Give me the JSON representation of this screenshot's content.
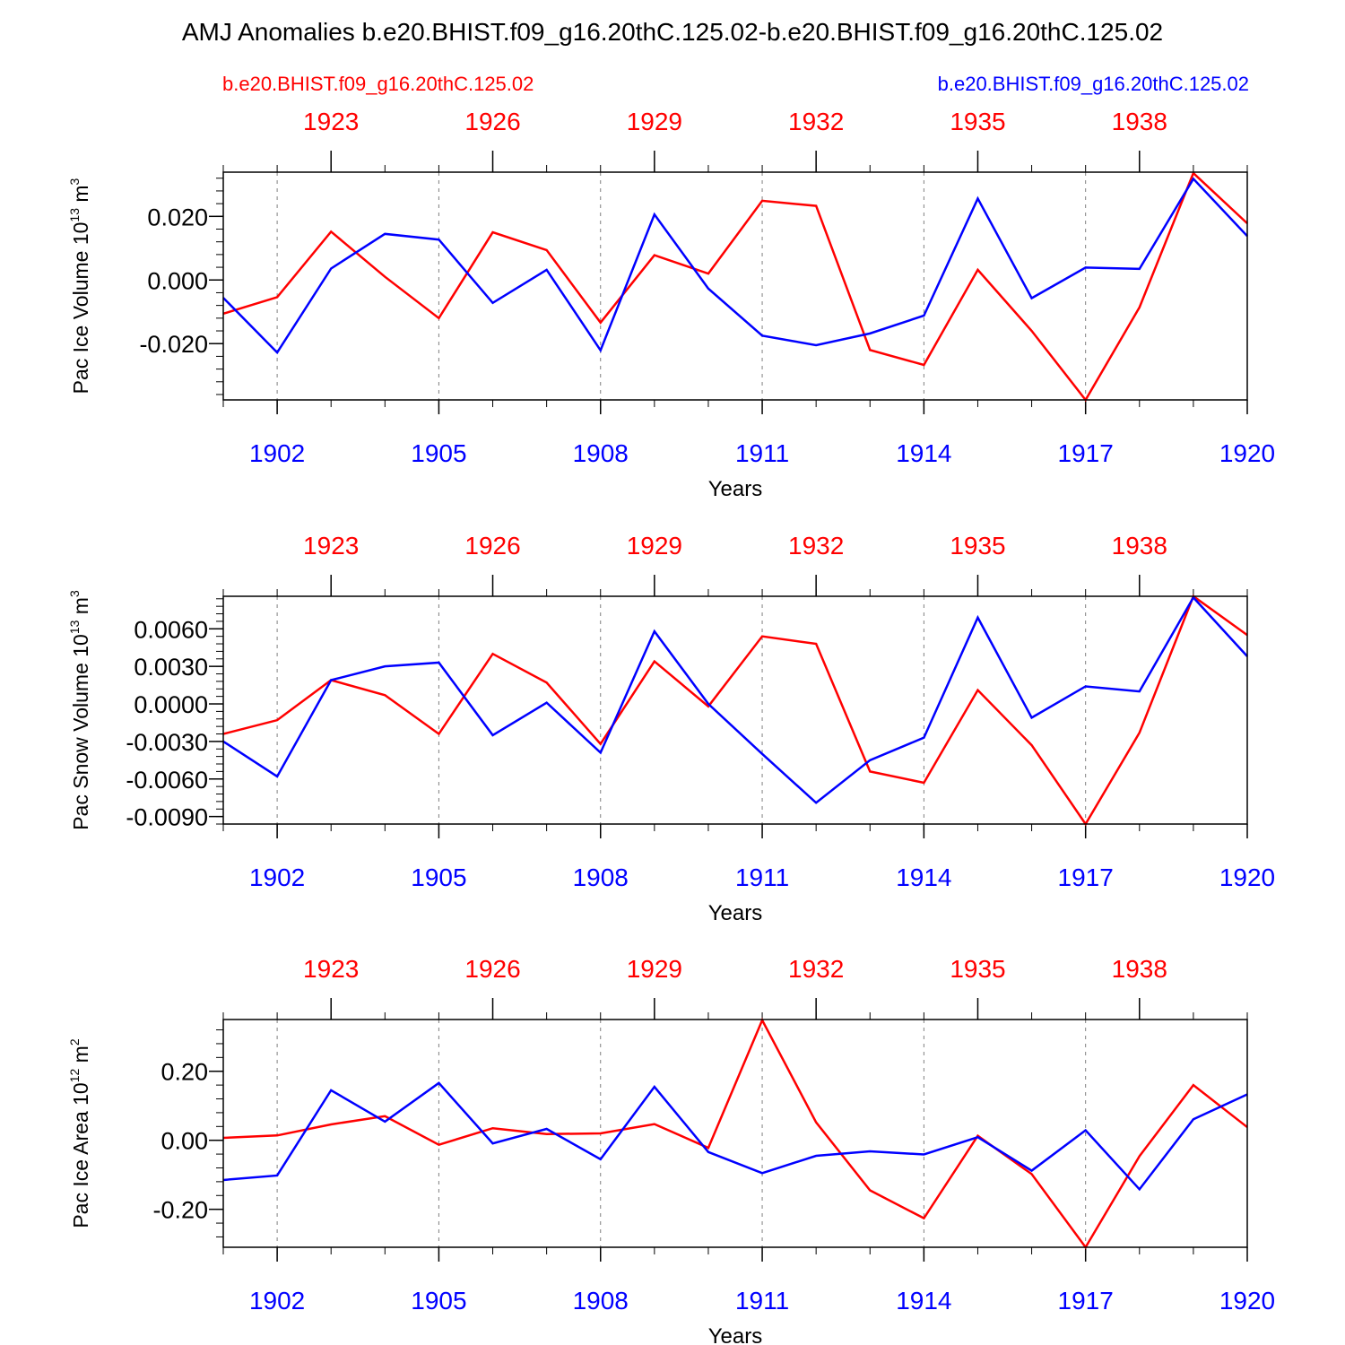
{
  "title": "AMJ Anomalies b.e20.BHIST.f09_g16.20thC.125.02-b.e20.BHIST.f09_g16.20thC.125.02",
  "legend": {
    "left_case": "b.e20.BHIST.f09_g16.20thC.125.02",
    "right_case": "b.e20.BHIST.f09_g16.20thC.125.02",
    "left_color": "#ff0000",
    "right_color": "#0000ff"
  },
  "colors": {
    "red": "#ff0000",
    "blue": "#0000ff",
    "axis": "#000000",
    "grid": "#7f7f7f"
  },
  "chart_data": [
    {
      "type": "line",
      "ylabel": "Pac Ice Volume 10",
      "ylabel_exp": "13",
      "ylabel_unit": " m",
      "ylabel_unit_exp": "3",
      "xlabel": "Years",
      "xlim": [
        1901,
        1920
      ],
      "ylim": [
        -0.0377,
        0.0339
      ],
      "yticks": [
        -0.02,
        0.0,
        0.02
      ],
      "ytick_labels": [
        "-0.020",
        "0.000",
        "0.020"
      ],
      "yminor_step": 0.004,
      "bottom_ticks": [
        1902,
        1905,
        1908,
        1911,
        1914,
        1917,
        1920
      ],
      "bottom_tick_labels": [
        "1902",
        "1905",
        "1908",
        "1911",
        "1914",
        "1917",
        "1920"
      ],
      "top_ticks": [
        1923,
        1926,
        1929,
        1932,
        1935,
        1938
      ],
      "top_tick_labels": [
        "1923",
        "1926",
        "1929",
        "1932",
        "1935",
        "1938"
      ],
      "grid_x": [
        1902,
        1905,
        1908,
        1911,
        1914,
        1917
      ],
      "series": [
        {
          "name": "red-case",
          "color": "#ff0000",
          "x_start": 1921,
          "values": [
            -0.0106,
            -0.0054,
            0.0152,
            0.001,
            -0.012,
            0.015,
            0.0094,
            -0.0134,
            0.0078,
            0.002,
            0.0249,
            0.0233,
            -0.022,
            -0.0267,
            0.0032,
            -0.016,
            -0.0377,
            -0.0086,
            0.0336,
            0.0178
          ]
        },
        {
          "name": "blue-case",
          "color": "#0000ff",
          "x_start": 1901,
          "values": [
            -0.0056,
            -0.0228,
            0.0036,
            0.0145,
            0.0127,
            -0.0072,
            0.0032,
            -0.0221,
            0.0206,
            -0.0027,
            -0.0175,
            -0.0205,
            -0.0168,
            -0.0112,
            0.0256,
            -0.0057,
            0.0039,
            0.0035,
            0.0318,
            0.0138
          ]
        }
      ]
    },
    {
      "type": "line",
      "ylabel": "Pac Snow Volume 10",
      "ylabel_exp": "13",
      "ylabel_unit": " m",
      "ylabel_unit_exp": "3",
      "xlabel": "Years",
      "xlim": [
        1901,
        1920
      ],
      "ylim": [
        -0.0096,
        0.0086
      ],
      "yticks": [
        -0.009,
        -0.006,
        -0.003,
        0.0,
        0.003,
        0.006
      ],
      "ytick_labels": [
        "-0.0090",
        "-0.0060",
        "-0.0030",
        "0.0000",
        "0.0030",
        "0.0060"
      ],
      "yminor_step": 0.0006,
      "bottom_ticks": [
        1902,
        1905,
        1908,
        1911,
        1914,
        1917,
        1920
      ],
      "bottom_tick_labels": [
        "1902",
        "1905",
        "1908",
        "1911",
        "1914",
        "1917",
        "1920"
      ],
      "top_ticks": [
        1923,
        1926,
        1929,
        1932,
        1935,
        1938
      ],
      "top_tick_labels": [
        "1923",
        "1926",
        "1929",
        "1932",
        "1935",
        "1938"
      ],
      "grid_x": [
        1902,
        1905,
        1908,
        1911,
        1914,
        1917
      ],
      "series": [
        {
          "name": "red-case",
          "color": "#ff0000",
          "x_start": 1921,
          "values": [
            -0.0024,
            -0.0013,
            0.0019,
            0.0007,
            -0.0024,
            0.004,
            0.0017,
            -0.0032,
            0.0034,
            -0.0002,
            0.0054,
            0.0048,
            -0.0054,
            -0.0063,
            0.0011,
            -0.0033,
            -0.0096,
            -0.0023,
            0.0086,
            0.0055
          ]
        },
        {
          "name": "blue-case",
          "color": "#0000ff",
          "x_start": 1901,
          "values": [
            -0.003,
            -0.0058,
            0.0019,
            0.003,
            0.0033,
            -0.0025,
            0.0001,
            -0.0039,
            0.0058,
            0.0,
            -0.004,
            -0.0079,
            -0.0045,
            -0.0027,
            0.0069,
            -0.0011,
            0.0014,
            0.001,
            0.0085,
            0.0038
          ]
        }
      ]
    },
    {
      "type": "line",
      "ylabel": "Pac Ice Area 10",
      "ylabel_exp": "12",
      "ylabel_unit": " m",
      "ylabel_unit_exp": "2",
      "xlabel": "Years",
      "xlim": [
        1901,
        1920
      ],
      "ylim": [
        -0.31,
        0.35
      ],
      "yticks": [
        -0.2,
        0.0,
        0.2
      ],
      "ytick_labels": [
        "-0.20",
        "0.00",
        "0.20"
      ],
      "yminor_step": 0.04,
      "bottom_ticks": [
        1902,
        1905,
        1908,
        1911,
        1914,
        1917,
        1920
      ],
      "bottom_tick_labels": [
        "1902",
        "1905",
        "1908",
        "1911",
        "1914",
        "1917",
        "1920"
      ],
      "top_ticks": [
        1923,
        1926,
        1929,
        1932,
        1935,
        1938
      ],
      "top_tick_labels": [
        "1923",
        "1926",
        "1929",
        "1932",
        "1935",
        "1938"
      ],
      "grid_x": [
        1902,
        1905,
        1908,
        1911,
        1914,
        1917
      ],
      "series": [
        {
          "name": "red-case",
          "color": "#ff0000",
          "x_start": 1921,
          "values": [
            0.007,
            0.014,
            0.046,
            0.07,
            -0.013,
            0.035,
            0.018,
            0.02,
            0.047,
            -0.022,
            0.348,
            0.052,
            -0.145,
            -0.226,
            0.013,
            -0.098,
            -0.31,
            -0.046,
            0.16,
            0.038
          ]
        },
        {
          "name": "blue-case",
          "color": "#0000ff",
          "x_start": 1901,
          "values": [
            -0.115,
            -0.102,
            0.145,
            0.054,
            0.166,
            -0.009,
            0.033,
            -0.055,
            0.155,
            -0.034,
            -0.095,
            -0.045,
            -0.032,
            -0.041,
            0.009,
            -0.088,
            0.029,
            -0.142,
            0.061,
            0.133
          ]
        }
      ]
    }
  ]
}
